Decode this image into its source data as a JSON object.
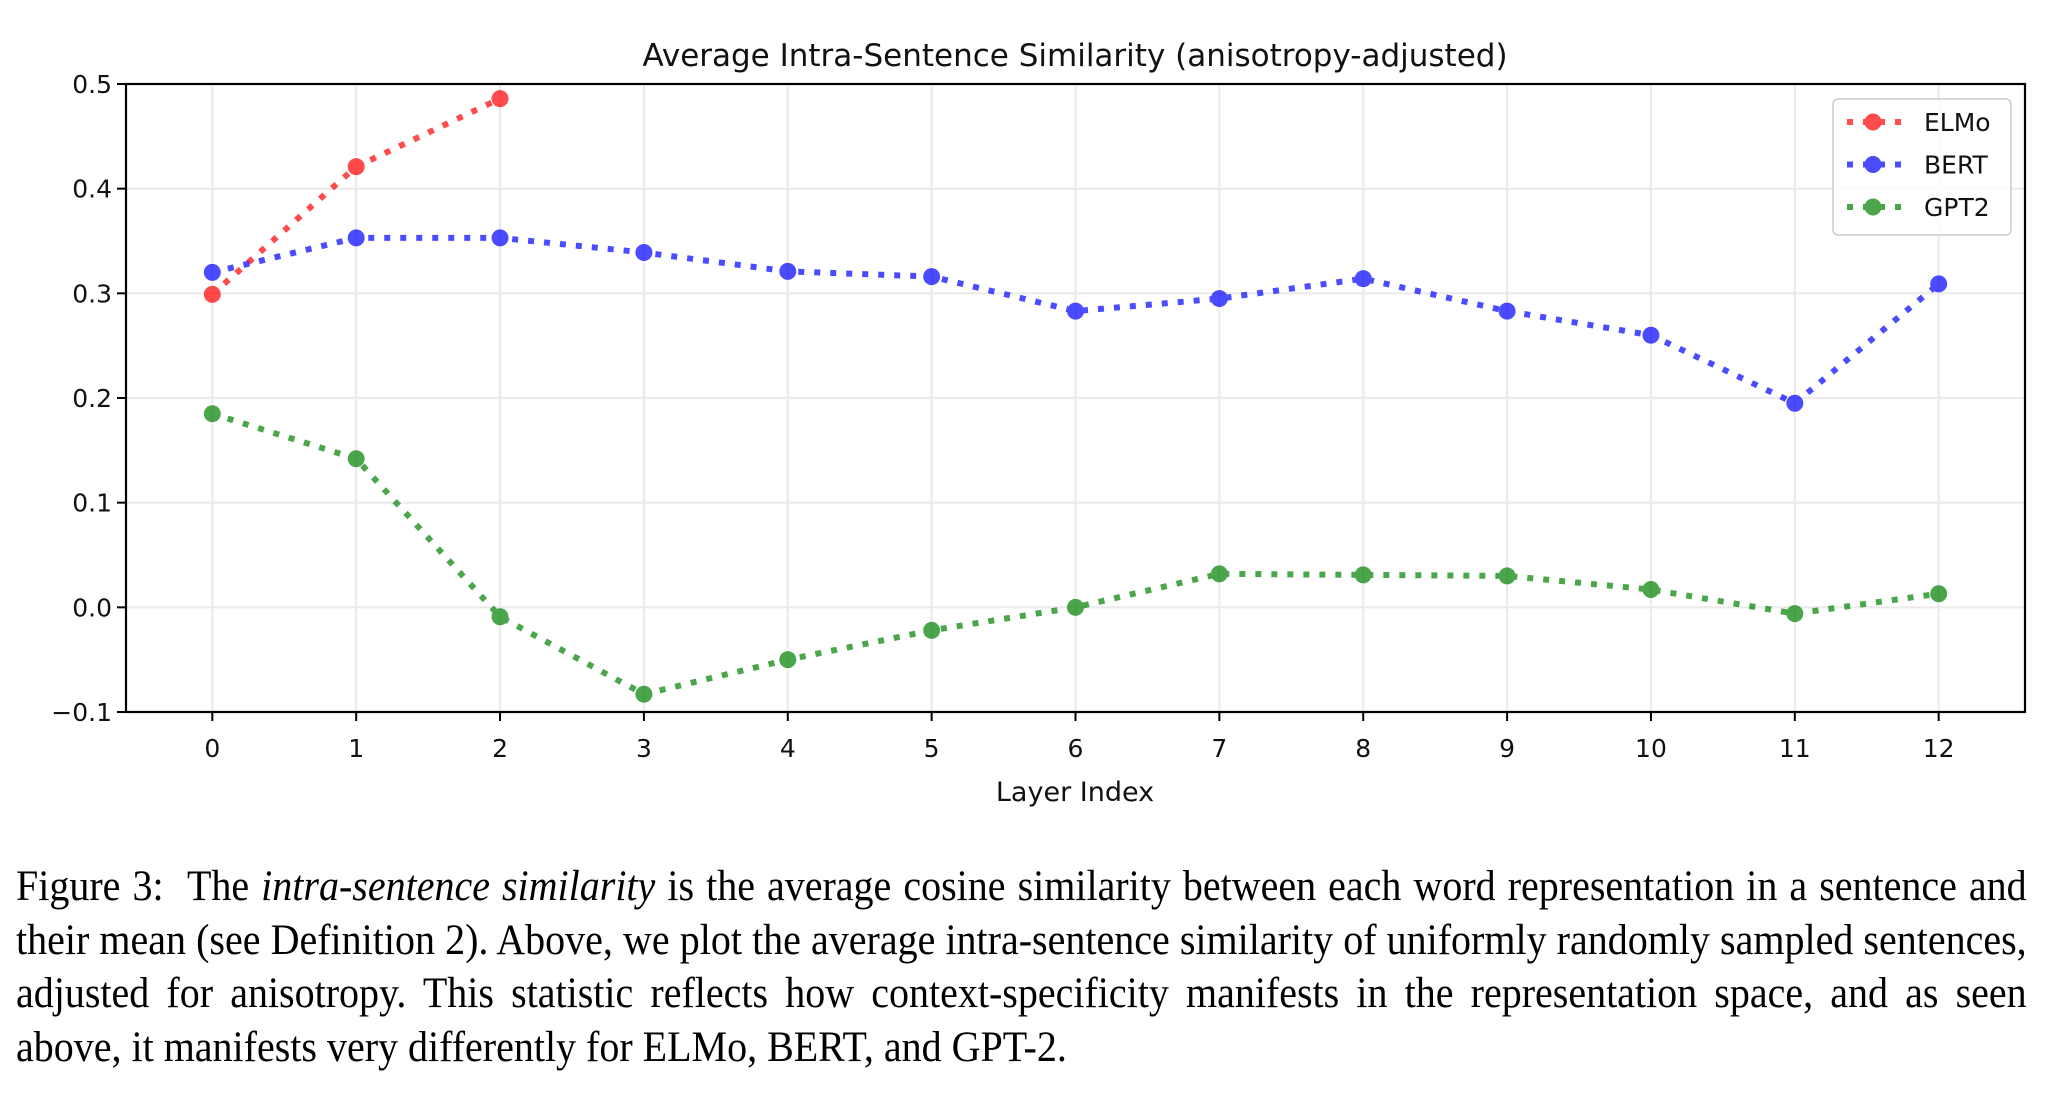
{
  "chart_data": {
    "type": "line",
    "title": "Average Intra-Sentence Similarity (anisotropy-adjusted)",
    "xlabel": "Layer Index",
    "ylabel": "",
    "xlim": [
      -0.6,
      12.6
    ],
    "ylim": [
      -0.1,
      0.5
    ],
    "xticks": [
      0,
      1,
      2,
      3,
      4,
      5,
      6,
      7,
      8,
      9,
      10,
      11,
      12
    ],
    "xtick_labels": [
      "0",
      "1",
      "2",
      "3",
      "4",
      "5",
      "6",
      "7",
      "8",
      "9",
      "10",
      "11",
      "12"
    ],
    "yticks": [
      -0.1,
      0.0,
      0.1,
      0.2,
      0.3,
      0.4,
      0.5
    ],
    "ytick_labels": [
      "−0.1",
      "0.0",
      "0.1",
      "0.2",
      "0.3",
      "0.4",
      "0.5"
    ],
    "grid": true,
    "legend_position": "top-right",
    "line_style": "dotted",
    "marker": "circle",
    "series": [
      {
        "name": "ELMo",
        "color": "#ff0000",
        "x": [
          0,
          1,
          2
        ],
        "values": [
          0.299,
          0.421,
          0.486
        ]
      },
      {
        "name": "BERT",
        "color": "#0000ff",
        "x": [
          0,
          1,
          2,
          3,
          4,
          5,
          6,
          7,
          8,
          9,
          10,
          11,
          12
        ],
        "values": [
          0.32,
          0.353,
          0.353,
          0.339,
          0.321,
          0.316,
          0.283,
          0.295,
          0.314,
          0.283,
          0.26,
          0.195,
          0.309
        ]
      },
      {
        "name": "GPT2",
        "color": "#008000",
        "x": [
          0,
          1,
          2,
          3,
          4,
          5,
          6,
          7,
          8,
          9,
          10,
          11,
          12
        ],
        "values": [
          0.185,
          0.142,
          -0.009,
          -0.083,
          -0.05,
          -0.022,
          0.0,
          0.032,
          0.031,
          0.03,
          0.017,
          -0.006,
          0.013
        ]
      }
    ]
  },
  "caption": {
    "label": "Figure 3:",
    "pre": "The",
    "term": "intra-sentence similarity",
    "body": "is the average cosine similarity between each word representation in a sentence and their mean (see Definition 2).  Above, we plot the average intra-sentence similarity of uniformly randomly sampled sentences, adjusted for anisotropy.  This statistic reflects how context-specificity manifests in the representation space, and as seen above, it manifests very differently for ELMo, BERT, and GPT-2."
  }
}
